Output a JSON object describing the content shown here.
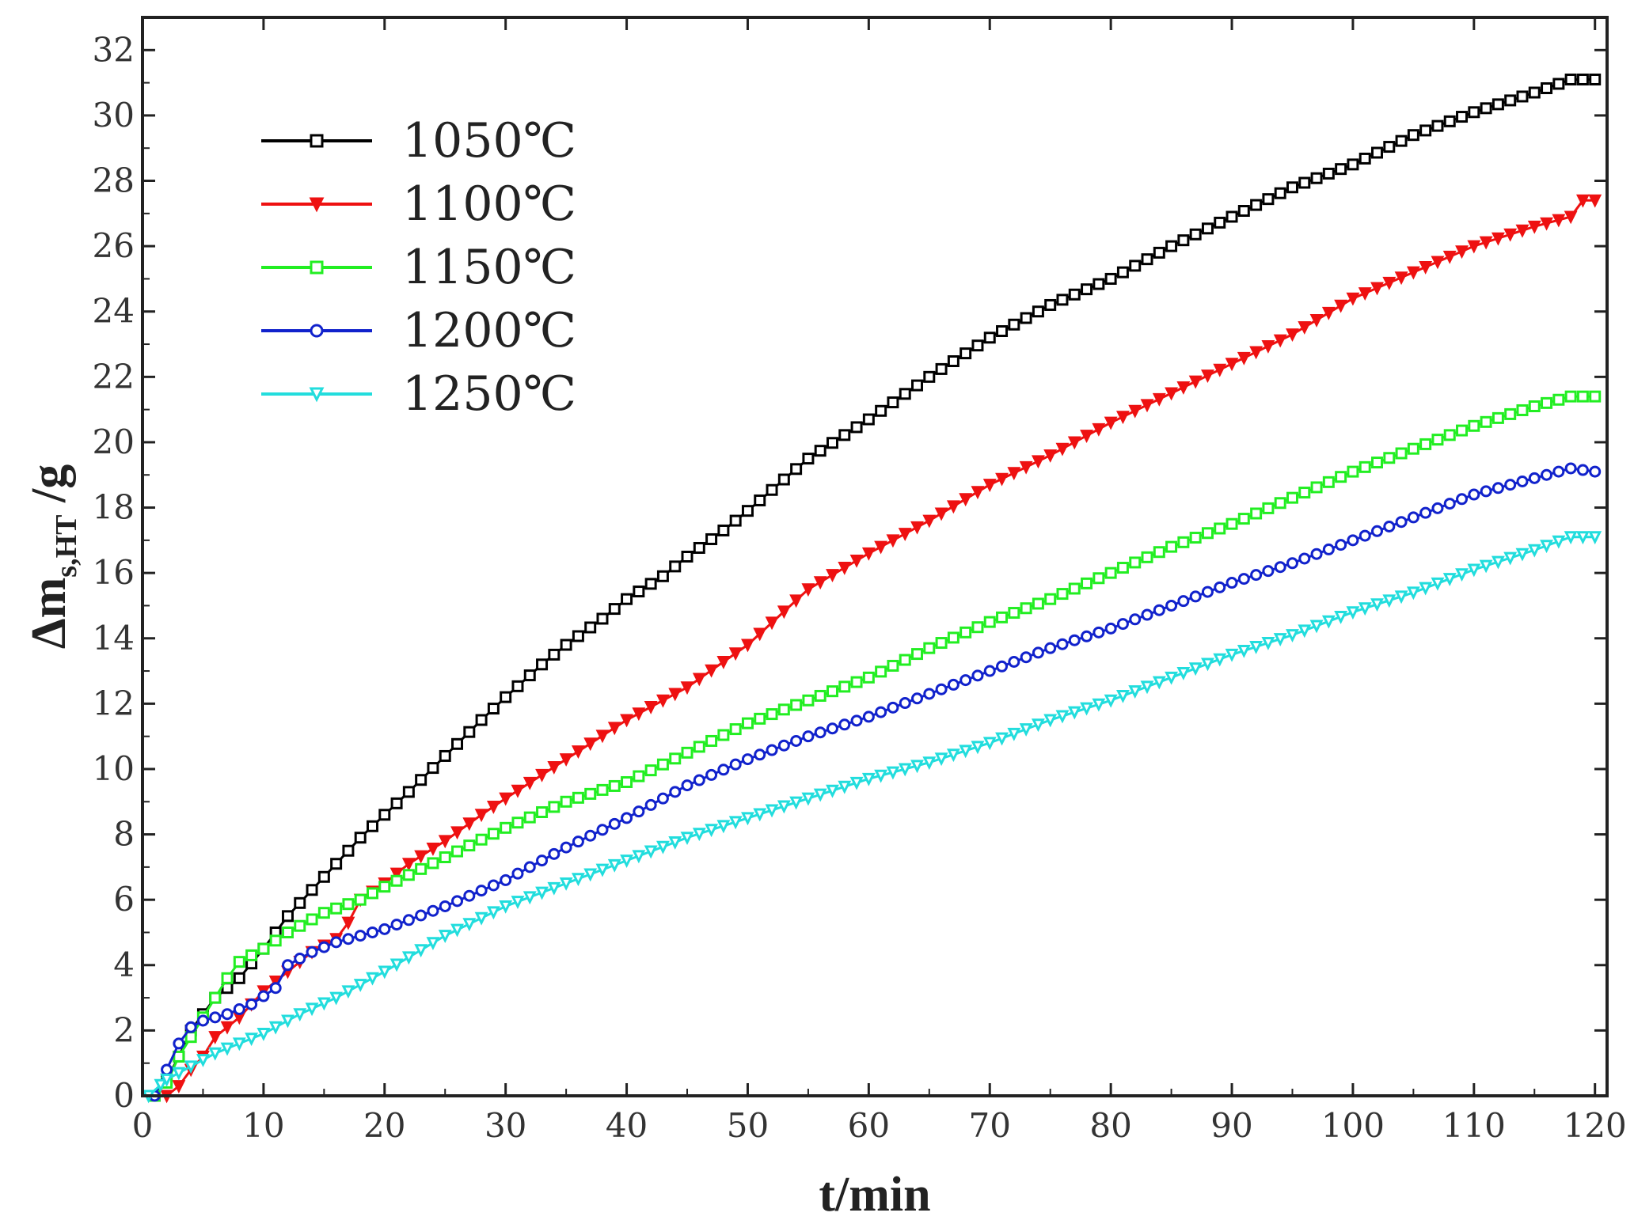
{
  "chart_data": {
    "type": "line",
    "title": "",
    "xlabel": "t/min",
    "ylabel_parts": {
      "prefix": "Δm",
      "subscript": "s,HT",
      "suffix": " /g"
    },
    "xlim": [
      0,
      121
    ],
    "ylim": [
      0,
      33
    ],
    "xticks": [
      0,
      10,
      20,
      30,
      40,
      50,
      60,
      70,
      80,
      90,
      100,
      110,
      120
    ],
    "yticks": [
      0,
      2,
      4,
      6,
      8,
      10,
      12,
      14,
      16,
      18,
      20,
      22,
      24,
      26,
      28,
      30,
      32
    ],
    "legend_position": "top-left",
    "series": [
      {
        "name": "1050℃",
        "color": "#000000",
        "marker": "square",
        "x": [
          1,
          2,
          3,
          4,
          5,
          6,
          7,
          8,
          10,
          12,
          14,
          16,
          18,
          20,
          22,
          25,
          28,
          30,
          33,
          35,
          38,
          40,
          43,
          45,
          48,
          50,
          55,
          60,
          65,
          70,
          75,
          80,
          85,
          90,
          95,
          100,
          105,
          110,
          115,
          118,
          120
        ],
        "y": [
          0,
          0.5,
          1.2,
          2.0,
          2.5,
          3.0,
          3.3,
          3.6,
          4.5,
          5.5,
          6.3,
          7.1,
          7.9,
          8.6,
          9.3,
          10.4,
          11.5,
          12.2,
          13.2,
          13.8,
          14.6,
          15.2,
          15.9,
          16.5,
          17.3,
          17.9,
          19.5,
          20.7,
          22.0,
          23.2,
          24.2,
          25.0,
          26.0,
          26.9,
          27.8,
          28.5,
          29.4,
          30.1,
          30.7,
          31.1,
          31.1
        ]
      },
      {
        "name": "1100℃",
        "color": "#ee1111",
        "marker": "triangle-down-filled",
        "x": [
          2,
          3,
          4,
          5,
          6,
          8,
          10,
          12,
          14,
          16,
          17,
          18,
          20,
          22,
          25,
          28,
          30,
          35,
          40,
          45,
          50,
          55,
          60,
          65,
          70,
          75,
          80,
          85,
          90,
          95,
          100,
          105,
          110,
          115,
          118,
          119,
          120
        ],
        "y": [
          0,
          0.3,
          0.8,
          1.2,
          1.8,
          2.4,
          3.2,
          3.8,
          4.4,
          4.8,
          5.3,
          6.0,
          6.5,
          7.1,
          7.8,
          8.6,
          9.1,
          10.3,
          11.5,
          12.5,
          13.8,
          15.5,
          16.6,
          17.6,
          18.7,
          19.6,
          20.6,
          21.5,
          22.4,
          23.3,
          24.4,
          25.2,
          26.0,
          26.6,
          26.9,
          27.4,
          27.4
        ]
      },
      {
        "name": "1150℃",
        "color": "#22ee22",
        "marker": "square",
        "x": [
          1,
          2,
          3,
          4,
          5,
          6,
          7,
          8,
          10,
          12,
          15,
          18,
          20,
          25,
          30,
          35,
          40,
          45,
          50,
          55,
          60,
          65,
          70,
          75,
          80,
          85,
          90,
          95,
          100,
          105,
          110,
          115,
          118,
          120
        ],
        "y": [
          0,
          0.4,
          1.2,
          1.8,
          2.4,
          3.0,
          3.6,
          4.1,
          4.5,
          5.0,
          5.6,
          6.0,
          6.4,
          7.3,
          8.2,
          9.0,
          9.6,
          10.5,
          11.4,
          12.1,
          12.8,
          13.7,
          14.5,
          15.2,
          16.0,
          16.8,
          17.5,
          18.3,
          19.1,
          19.8,
          20.5,
          21.1,
          21.4,
          21.4
        ]
      },
      {
        "name": "1200℃",
        "color": "#1122cc",
        "marker": "circle",
        "x": [
          1,
          2,
          3,
          4,
          5,
          7,
          9,
          11,
          12,
          14,
          16,
          20,
          25,
          30,
          35,
          40,
          45,
          50,
          55,
          60,
          65,
          70,
          75,
          80,
          85,
          90,
          95,
          100,
          105,
          110,
          115,
          118,
          120
        ],
        "y": [
          0,
          0.8,
          1.6,
          2.1,
          2.3,
          2.5,
          2.8,
          3.3,
          4.0,
          4.4,
          4.7,
          5.1,
          5.8,
          6.6,
          7.6,
          8.5,
          9.5,
          10.3,
          11.0,
          11.6,
          12.3,
          13.0,
          13.7,
          14.3,
          15.0,
          15.7,
          16.3,
          17.0,
          17.7,
          18.4,
          18.9,
          19.2,
          19.1
        ]
      },
      {
        "name": "1250℃",
        "color": "#22dddd",
        "marker": "triangle-down",
        "x": [
          0.5,
          2,
          4,
          6,
          8,
          10,
          13,
          16,
          20,
          25,
          30,
          35,
          40,
          45,
          50,
          55,
          60,
          65,
          70,
          75,
          80,
          85,
          90,
          95,
          100,
          105,
          110,
          115,
          118,
          120
        ],
        "y": [
          0,
          0.5,
          0.9,
          1.3,
          1.6,
          1.9,
          2.5,
          3.0,
          3.8,
          4.9,
          5.8,
          6.5,
          7.2,
          7.9,
          8.5,
          9.1,
          9.7,
          10.2,
          10.8,
          11.5,
          12.1,
          12.8,
          13.5,
          14.1,
          14.8,
          15.4,
          16.1,
          16.7,
          17.1,
          17.1
        ]
      }
    ]
  }
}
